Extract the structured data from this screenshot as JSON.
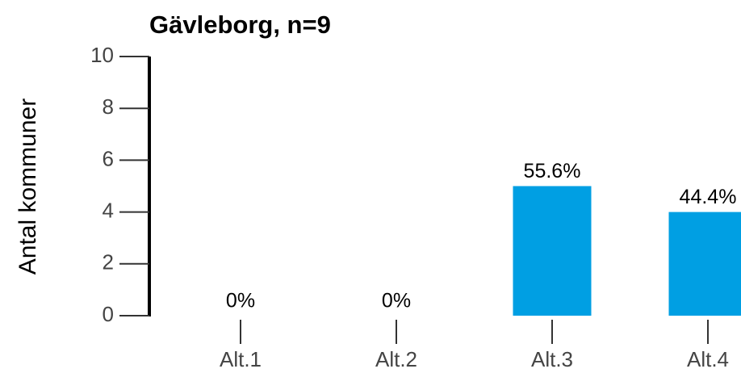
{
  "chart_data": {
    "type": "bar",
    "title": "Gävleborg, n=9",
    "y_label": "Antal kommuner",
    "categories": [
      "Alt.1",
      "Alt.2",
      "Alt.3",
      "Alt.4"
    ],
    "values": [
      0,
      0,
      5,
      4
    ],
    "value_labels": [
      "0%",
      "0%",
      "55.6%",
      "44.4%"
    ],
    "color": "#009fe3",
    "ylim": [
      0,
      10
    ],
    "yticks": [
      0,
      2,
      4,
      6,
      8,
      10
    ]
  }
}
